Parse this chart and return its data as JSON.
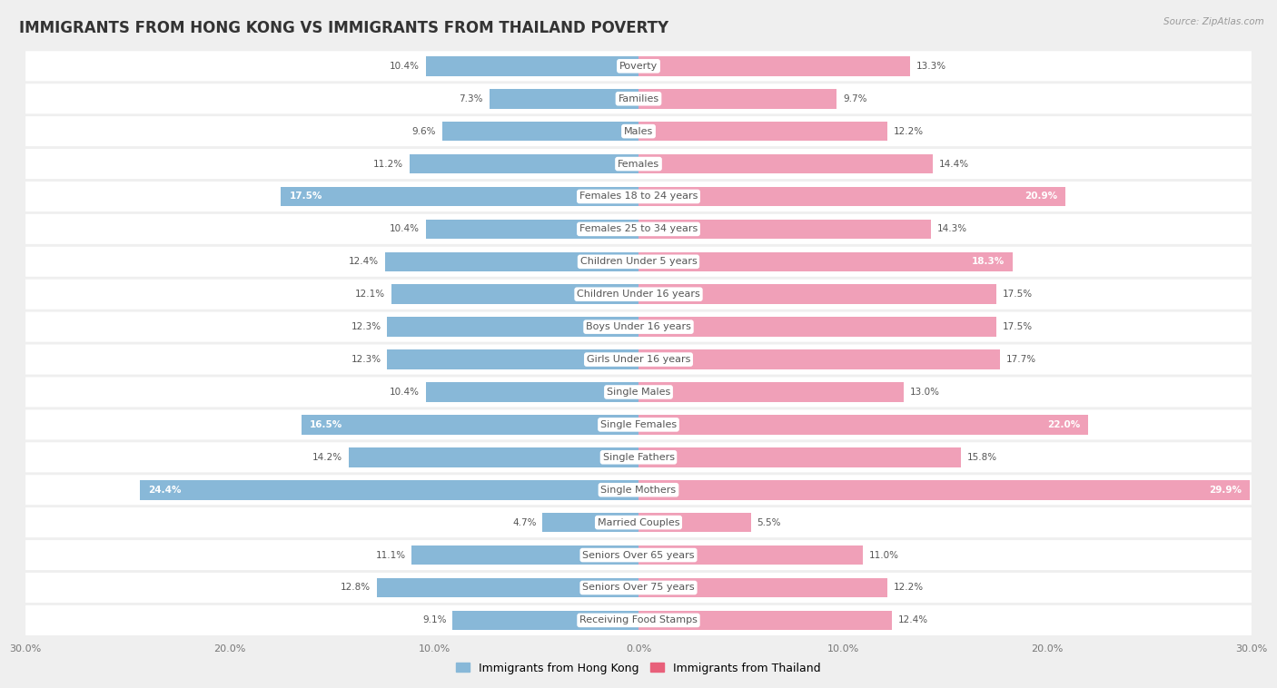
{
  "title": "IMMIGRANTS FROM HONG KONG VS IMMIGRANTS FROM THAILAND POVERTY",
  "source": "Source: ZipAtlas.com",
  "categories": [
    "Poverty",
    "Families",
    "Males",
    "Females",
    "Females 18 to 24 years",
    "Females 25 to 34 years",
    "Children Under 5 years",
    "Children Under 16 years",
    "Boys Under 16 years",
    "Girls Under 16 years",
    "Single Males",
    "Single Females",
    "Single Fathers",
    "Single Mothers",
    "Married Couples",
    "Seniors Over 65 years",
    "Seniors Over 75 years",
    "Receiving Food Stamps"
  ],
  "hong_kong": [
    10.4,
    7.3,
    9.6,
    11.2,
    17.5,
    10.4,
    12.4,
    12.1,
    12.3,
    12.3,
    10.4,
    16.5,
    14.2,
    24.4,
    4.7,
    11.1,
    12.8,
    9.1
  ],
  "thailand": [
    13.3,
    9.7,
    12.2,
    14.4,
    20.9,
    14.3,
    18.3,
    17.5,
    17.5,
    17.7,
    13.0,
    22.0,
    15.8,
    29.9,
    5.5,
    11.0,
    12.2,
    12.4
  ],
  "hk_color": "#88b8d8",
  "th_color": "#f0a0b8",
  "hk_label": "Immigrants from Hong Kong",
  "th_label": "Immigrants from Thailand",
  "hk_label_color": "#6fa8cc",
  "th_label_color": "#e8607a",
  "xlim": 30.0,
  "background_color": "#efefef",
  "bar_bg_color": "#ffffff",
  "title_fontsize": 12,
  "label_fontsize": 8.0,
  "value_fontsize": 7.5,
  "white_label_threshold_hk": 16.0,
  "white_label_threshold_th": 18.0
}
